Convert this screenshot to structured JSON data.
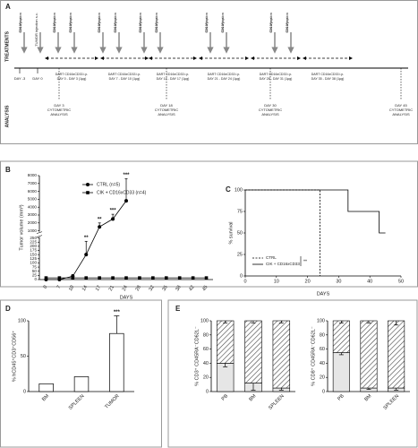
{
  "timeline": {
    "panel": "A",
    "row_labels": [
      "TREATMENTS",
      "ANALYSIS"
    ],
    "injections": [
      [
        "CIK injection",
        "5X10⁶ i.p."
      ],
      [
        "TUMOR injection s.c."
      ],
      [
        "CIK injection",
        "5X10⁶ i.p."
      ],
      [
        "CIK injection",
        "5X10⁶ i.p."
      ],
      [
        "CIK injection",
        "5X10⁶ i.p."
      ],
      [
        "CIK injection",
        "5X10⁶ i.p."
      ],
      [
        "CIK injection",
        "5X10⁶ i.p."
      ],
      [
        "CIK injection",
        "5X10⁶ i.p."
      ],
      [
        "CIK injection",
        "5X10⁶ i.p."
      ],
      [
        "CIK injection",
        "5X10⁶ i.p."
      ],
      [
        "CIK injection",
        "5X10⁶ i.p."
      ],
      [
        "CIK injection",
        "5X10⁶ i.p."
      ]
    ],
    "darts": [
      [
        "DART CD16xCD33 i.p.",
        "DAY 0 - DAY 3 (1µg)"
      ],
      [
        "DART CD16xCD33 i.p.",
        "DAY 7 - DAY 10 (1µg)"
      ],
      [
        "DART CD16xCD33 i.p.",
        "DAY 14 - DAY 17 (1µg)"
      ],
      [
        "DART CD16xCD33 i.p.",
        "DAY 21 - DAY 24 (1µg)"
      ],
      [
        "DART CD16xCD33 i.p.",
        "DAY 28 - DAY 31 (1µg)"
      ],
      [
        "DART CD16xCD33 i.p.",
        "DAY 35 - DAY 38 (1µg)"
      ]
    ],
    "analyses": [
      [
        "DAY -3"
      ],
      [
        "DAY 0"
      ],
      [
        "DAY 3",
        "CYTOMETRIC",
        "ANALYSIS"
      ],
      [
        "DAY 18",
        "CYTOMETRIC",
        "ANALYSIS"
      ],
      [
        "DAY 30",
        "CYTOMETRIC",
        "ANALYSIS"
      ],
      [
        "DAY 45",
        "CYTOMETRIC",
        "ANALYSIS"
      ]
    ]
  },
  "chart_data": [
    {
      "panel": "B",
      "type": "line",
      "ylabel": "Tumor volume (mm³)",
      "xlabel": "DAYS",
      "categories": [
        "0",
        "7",
        "10",
        "14",
        "17",
        "21",
        "24",
        "28",
        "32",
        "35",
        "38",
        "42",
        "45"
      ],
      "ylim": [
        0,
        8000
      ],
      "ybreak": [
        250,
        1000
      ],
      "yticks": [
        0,
        25,
        50,
        75,
        100,
        125,
        150,
        175,
        200,
        225,
        250,
        1000,
        2000,
        3000,
        4000,
        5000,
        6000,
        7000,
        8000
      ],
      "series": [
        {
          "name": "CTRL (n=5)",
          "marker": "circle",
          "color": "#000000",
          "values": [
            0,
            0,
            20,
            150,
            1500,
            2500,
            4800,
            null,
            null,
            null,
            null,
            null,
            null
          ],
          "errors": [
            0,
            0,
            10,
            80,
            500,
            600,
            2800,
            null,
            null,
            null,
            null,
            null,
            null
          ]
        },
        {
          "name": "CIK + CD16xCD33 (n=4)",
          "marker": "square",
          "color": "#000000",
          "values": [
            10,
            10,
            10,
            10,
            10,
            10,
            10,
            10,
            10,
            10,
            10,
            10,
            10
          ]
        }
      ],
      "annotations": [
        null,
        null,
        null,
        "**",
        "**",
        "***",
        "***",
        null,
        null,
        null,
        null,
        null,
        null
      ]
    },
    {
      "panel": "C",
      "type": "step",
      "ylabel": "% survival",
      "xlabel": "DAYS",
      "xlim": [
        0,
        50
      ],
      "xticks": [
        0,
        10,
        20,
        30,
        40,
        50
      ],
      "ylim": [
        0,
        100
      ],
      "yticks": [
        0,
        25,
        50,
        75,
        100
      ],
      "series": [
        {
          "name": "CTRL",
          "dash": true,
          "color": "#000000",
          "x": [
            0,
            24,
            24
          ],
          "values": [
            100,
            100,
            0
          ]
        },
        {
          "name": "CIK + CD16xCD33",
          "dash": false,
          "color": "#000000",
          "x": [
            0,
            33,
            33,
            43,
            43,
            45
          ],
          "values": [
            100,
            100,
            75,
            75,
            50,
            50
          ]
        }
      ],
      "annotation": "**"
    },
    {
      "panel": "D",
      "type": "bar",
      "ylabel": "% hCD45⁺CD3⁺CD56⁺",
      "categories": [
        "BM",
        "SPLEEN",
        "TUMOR"
      ],
      "ylim": [
        0,
        100
      ],
      "yticks": [
        0,
        50,
        100
      ],
      "values": [
        11,
        21,
        82
      ],
      "errors": [
        null,
        null,
        25
      ],
      "annotations": [
        null,
        null,
        "***"
      ]
    },
    {
      "panel": "E",
      "type": "stacked_bar",
      "ylabel": "% CD3⁺ CD45RA⁻CD62L⁻",
      "categories": [
        "PB",
        "BM",
        "SPLEEN"
      ],
      "ylim": [
        0,
        100
      ],
      "yticks": [
        0,
        20,
        40,
        60,
        80,
        100
      ],
      "series": [
        {
          "pattern": "solid",
          "color": "#e6e6e6",
          "values": [
            40,
            12,
            5
          ],
          "errors": [
            5,
            10,
            3
          ]
        },
        {
          "pattern": "hatch",
          "color": "#555555",
          "values": [
            60,
            88,
            95
          ],
          "errors": [
            3,
            3,
            3
          ]
        }
      ]
    },
    {
      "type": "stacked_bar",
      "ylabel": "% CD8⁺ CD45RA⁻CD62L⁻",
      "categories": [
        "PB",
        "BM",
        "SPLEEN"
      ],
      "ylim": [
        0,
        100
      ],
      "yticks": [
        0,
        20,
        40,
        60,
        80,
        100
      ],
      "series": [
        {
          "pattern": "solid",
          "color": "#e6e6e6",
          "values": [
            55,
            5,
            5
          ],
          "errors": [
            3,
            2,
            3
          ]
        },
        {
          "pattern": "hatch",
          "color": "#555555",
          "values": [
            45,
            95,
            95
          ],
          "errors": [
            3,
            3,
            6
          ]
        }
      ]
    }
  ]
}
